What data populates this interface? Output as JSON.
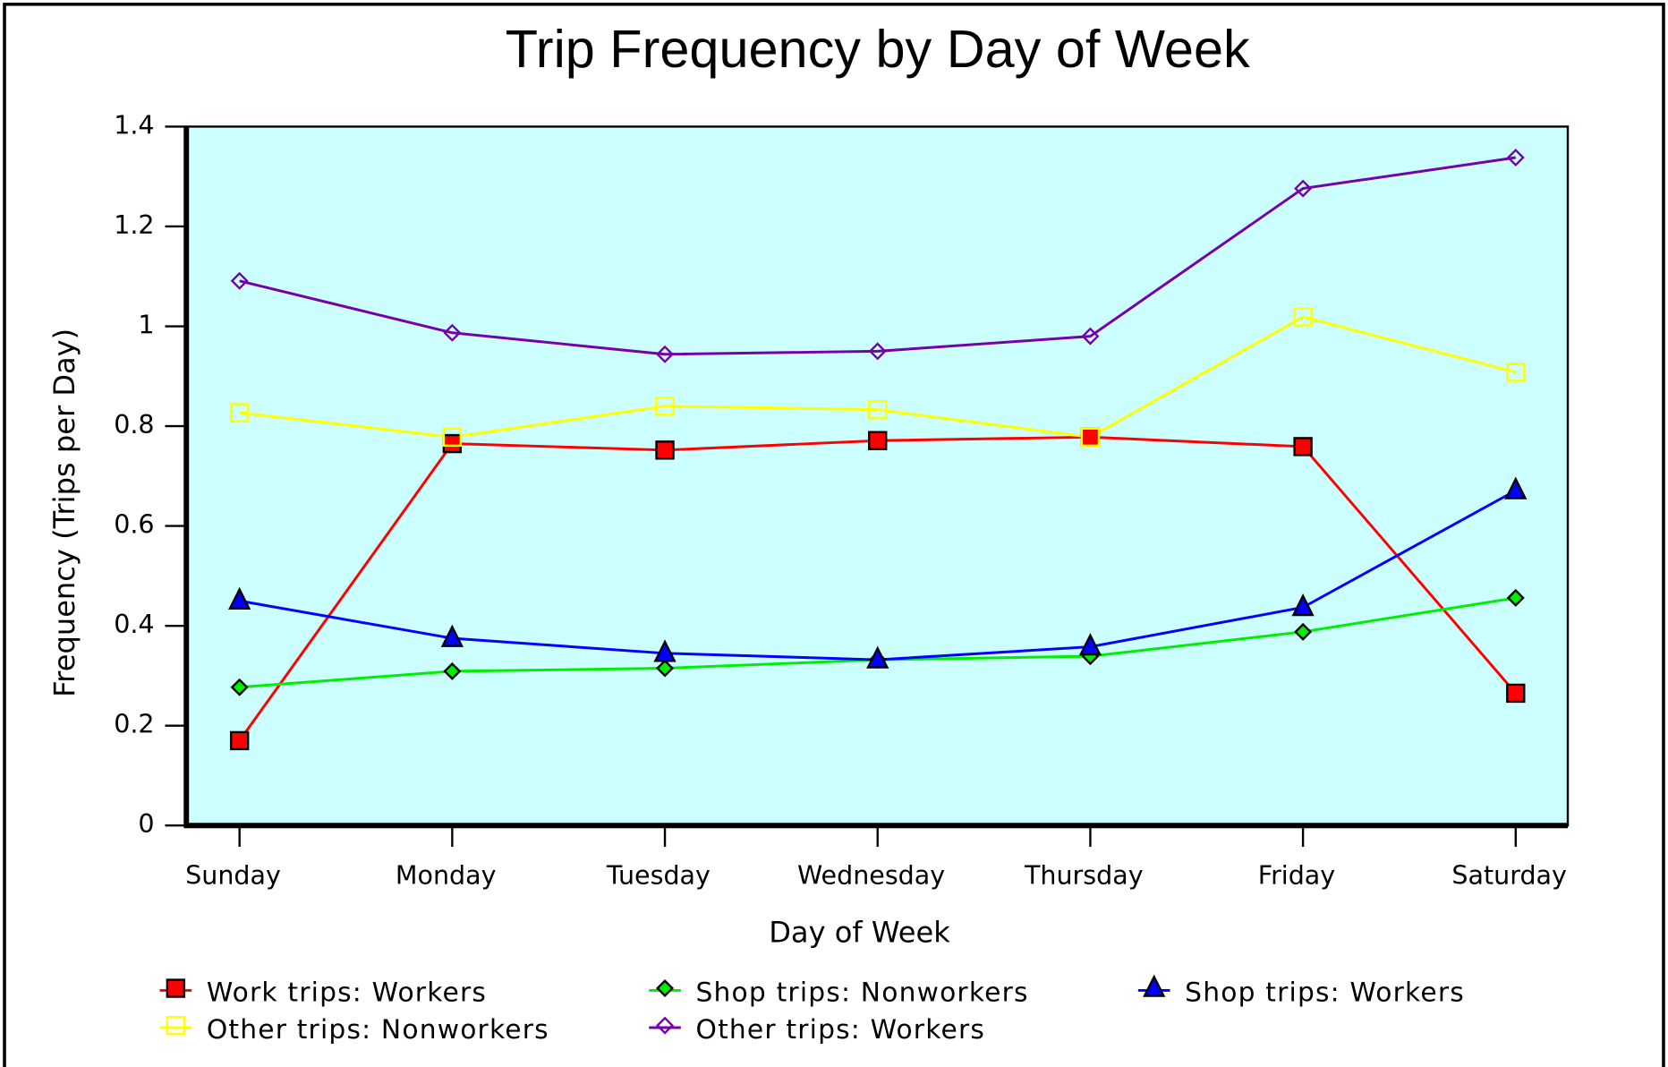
{
  "chart_data": {
    "type": "line",
    "title": "Trip Frequency by Day of Week",
    "xlabel": "Day of Week",
    "ylabel": "Frequency (Trips per Day)",
    "categories": [
      "Sunday",
      "Monday",
      "Tuesday",
      "Wednesday",
      "Thursday",
      "Friday",
      "Saturday"
    ],
    "ylim": [
      0,
      1.4
    ],
    "yticks": [
      0,
      0.2,
      0.4,
      0.6,
      0.8,
      1,
      1.2,
      1.4
    ],
    "background": "#ccffff",
    "series": [
      {
        "name": "Work trips: Workers",
        "color": "#ff0000",
        "marker": "square",
        "filled": true,
        "values": [
          0.17,
          0.765,
          0.752,
          0.771,
          0.778,
          0.759,
          0.265
        ]
      },
      {
        "name": "Shop trips: Nonworkers",
        "color": "#00ee00",
        "marker": "diamond",
        "filled": true,
        "values": [
          0.277,
          0.309,
          0.315,
          0.332,
          0.339,
          0.388,
          0.456
        ]
      },
      {
        "name": "Shop trips: Workers",
        "color": "#0000ff",
        "marker": "triangle",
        "filled": true,
        "values": [
          0.45,
          0.375,
          0.345,
          0.332,
          0.358,
          0.437,
          0.671
        ]
      },
      {
        "name": "Other trips: Nonworkers",
        "color": "#ffff00",
        "marker": "square",
        "filled": false,
        "values": [
          0.827,
          0.778,
          0.84,
          0.833,
          0.778,
          1.019,
          0.908
        ]
      },
      {
        "name": "Other trips: Workers",
        "color": "#7700aa",
        "marker": "diamond",
        "filled": false,
        "values": [
          1.091,
          0.987,
          0.944,
          0.95,
          0.98,
          1.276,
          1.338
        ]
      }
    ]
  }
}
